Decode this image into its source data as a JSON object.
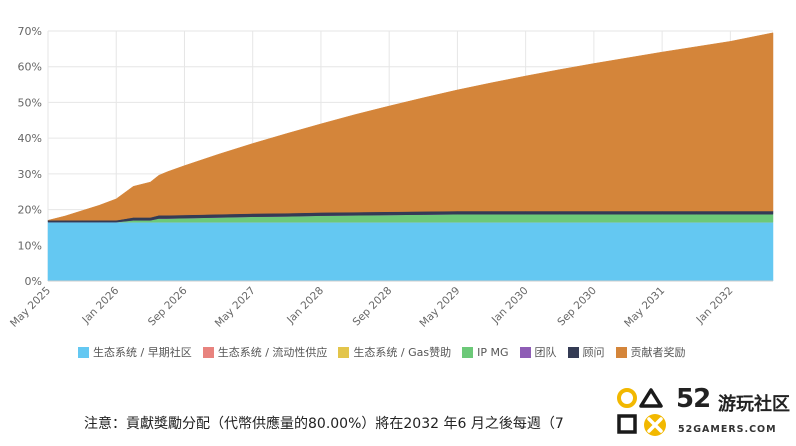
{
  "chart_data": {
    "type": "area",
    "stacked": true,
    "x_ticks": [
      "May 2025",
      "Jan 2026",
      "Sep 2026",
      "May 2027",
      "Jan 2028",
      "Sep 2028",
      "May 2029",
      "Jan 2030",
      "Sep 2030",
      "May 2031",
      "Jan 2032"
    ],
    "x_range": [
      "2025-05",
      "2032-06"
    ],
    "y_ticks": [
      "0%",
      "10%",
      "20%",
      "30%",
      "40%",
      "50%",
      "60%",
      "70%"
    ],
    "ylim": [
      0,
      70
    ],
    "grid": true,
    "legend_position": "bottom",
    "x": [
      "2025-05",
      "2025-07",
      "2025-09",
      "2025-11",
      "2026-01",
      "2026-03",
      "2026-05",
      "2026-06",
      "2026-07",
      "2026-09",
      "2026-11",
      "2027-01",
      "2027-05",
      "2027-09",
      "2028-01",
      "2028-05",
      "2028-09",
      "2029-01",
      "2029-05",
      "2029-09",
      "2030-01",
      "2030-05",
      "2030-09",
      "2031-01",
      "2031-05",
      "2031-09",
      "2032-01",
      "2032-06"
    ],
    "series": [
      {
        "name": "生态系统 / 早期社区",
        "color": "#64c8f2",
        "values": [
          16.5,
          16.5,
          16.5,
          16.5,
          16.5,
          16.5,
          16.5,
          16.5,
          16.5,
          16.5,
          16.5,
          16.5,
          16.5,
          16.5,
          16.5,
          16.5,
          16.5,
          16.5,
          16.5,
          16.5,
          16.5,
          16.5,
          16.5,
          16.5,
          16.5,
          16.5,
          16.5,
          16.5
        ]
      },
      {
        "name": "生态系统 / 流动性供应",
        "color": "#e8837e",
        "values": [
          0,
          0,
          0,
          0,
          0,
          0,
          0,
          0,
          0,
          0,
          0,
          0,
          0,
          0,
          0,
          0,
          0,
          0,
          0,
          0,
          0,
          0,
          0,
          0,
          0,
          0,
          0,
          0
        ]
      },
      {
        "name": "生态系统 / Gas赞助",
        "color": "#e3c54b",
        "values": [
          0,
          0,
          0,
          0,
          0,
          0,
          0,
          0,
          0,
          0,
          0,
          0,
          0,
          0,
          0,
          0,
          0,
          0,
          0,
          0,
          0,
          0,
          0,
          0,
          0,
          0,
          0,
          0
        ]
      },
      {
        "name": "IP MG",
        "color": "#6cc978",
        "values": [
          0,
          0,
          0,
          0,
          0,
          0.5,
          0.5,
          1.0,
          1.0,
          1.1,
          1.2,
          1.3,
          1.5,
          1.6,
          1.8,
          1.9,
          2.0,
          2.1,
          2.2,
          2.2,
          2.2,
          2.2,
          2.2,
          2.2,
          2.2,
          2.2,
          2.2,
          2.2
        ]
      },
      {
        "name": "团队",
        "color": "#8e5db5",
        "values": [
          0,
          0,
          0,
          0,
          0,
          0,
          0,
          0,
          0,
          0,
          0,
          0,
          0,
          0,
          0,
          0,
          0,
          0,
          0,
          0,
          0,
          0,
          0,
          0,
          0,
          0,
          0,
          0
        ]
      },
      {
        "name": "顾问",
        "color": "#343b54",
        "values": [
          0.5,
          0.5,
          0.5,
          0.5,
          0.5,
          0.8,
          0.8,
          0.9,
          0.9,
          0.9,
          0.9,
          0.9,
          0.9,
          0.9,
          0.9,
          0.9,
          0.9,
          0.9,
          0.9,
          0.9,
          0.9,
          0.9,
          0.9,
          0.9,
          0.9,
          0.9,
          0.9,
          0.9
        ]
      },
      {
        "name": "贡献者奖励",
        "color": "#d4853a",
        "values": [
          0,
          1.2,
          2.7,
          4.2,
          6.0,
          8.7,
          9.9,
          11.2,
          12.2,
          13.8,
          15.3,
          16.8,
          19.6,
          22.3,
          24.8,
          27.3,
          29.6,
          31.8,
          33.9,
          35.9,
          37.8,
          39.6,
          41.3,
          42.9,
          44.5,
          46.0,
          47.5,
          49.9
        ]
      }
    ]
  },
  "note": "注意：貢獻獎勵分配（代幣供應量的80.00%）將在2032 年6 月之後每週（7",
  "logo": {
    "number": "52",
    "name_cn": "游玩社区",
    "name_en": "52GAMERS.COM"
  }
}
